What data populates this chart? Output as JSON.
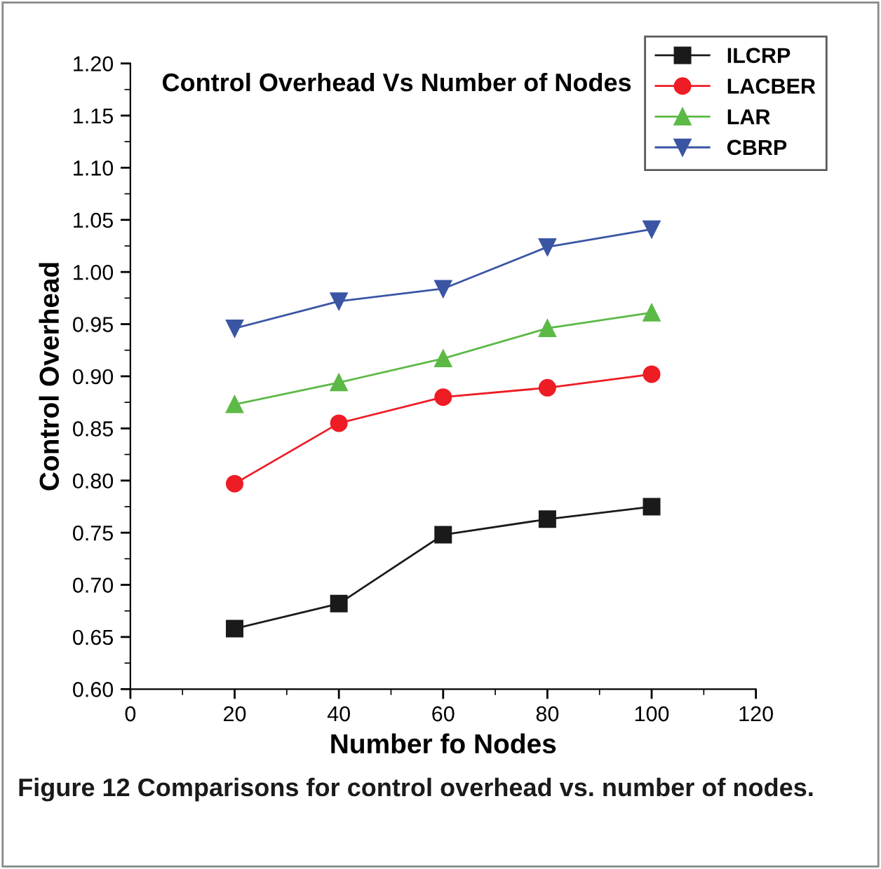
{
  "chart_data": {
    "type": "line",
    "title": "Control Overhead Vs Number of Nodes",
    "xlabel": "Number fo Nodes",
    "ylabel": "Control Overhead",
    "x": [
      20,
      40,
      60,
      80,
      100
    ],
    "series": [
      {
        "name": "ILCRP",
        "color": "#1a1a1a",
        "marker": "square",
        "values": [
          0.658,
          0.682,
          0.748,
          0.763,
          0.775
        ]
      },
      {
        "name": "LACBER",
        "color": "#ee1c25",
        "marker": "circle",
        "values": [
          0.797,
          0.855,
          0.88,
          0.889,
          0.902
        ]
      },
      {
        "name": "LAR",
        "color": "#5cb946",
        "marker": "triangle",
        "values": [
          0.873,
          0.894,
          0.917,
          0.946,
          0.961
        ]
      },
      {
        "name": "CBRP",
        "color": "#3a55a4",
        "marker": "triangle_down",
        "values": [
          0.946,
          0.972,
          0.984,
          1.024,
          1.041
        ]
      }
    ],
    "xlim": [
      0,
      120
    ],
    "xticks": [
      0,
      20,
      40,
      60,
      80,
      100,
      120
    ],
    "ylim": [
      0.6,
      1.2
    ],
    "yticks": [
      {
        "value": 0.6,
        "label": "0.60"
      },
      {
        "value": 0.65,
        "label": "0.65"
      },
      {
        "value": 0.7,
        "label": "0.70"
      },
      {
        "value": 0.75,
        "label": "0.75"
      },
      {
        "value": 0.8,
        "label": "0.80"
      },
      {
        "value": 0.85,
        "label": "0.85"
      },
      {
        "value": 0.9,
        "label": "0.90"
      },
      {
        "value": 0.95,
        "label": "0.95"
      },
      {
        "value": 1.0,
        "label": "1.00"
      },
      {
        "value": 1.05,
        "label": "1.05"
      },
      {
        "value": 1.1,
        "label": "1.10"
      },
      {
        "value": 1.15,
        "label": "1.15"
      },
      {
        "value": 1.2,
        "label": "1.20"
      }
    ],
    "grid": false,
    "legend": "top right",
    "line_style": "solid",
    "annotations": [
      "Figure 12 Comparisons for control overhead vs. number of nodes."
    ]
  }
}
